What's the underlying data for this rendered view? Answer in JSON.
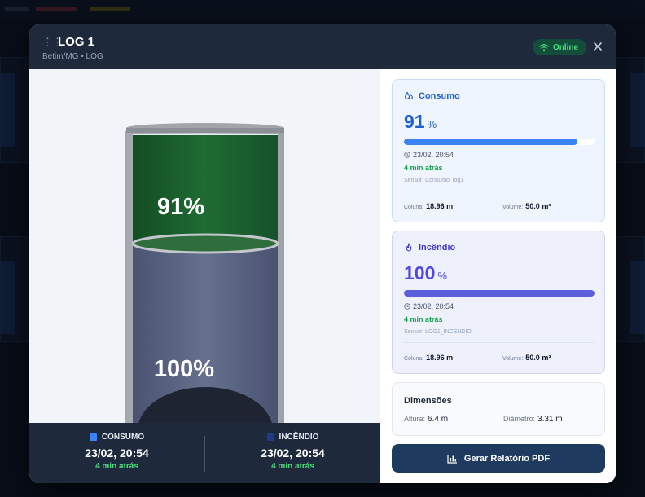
{
  "modal": {
    "title": "LOG 1",
    "subtitle": "Betim/MG • LOG",
    "status": "Online"
  },
  "tank": {
    "consumo_label": "91%",
    "incendio_label": "100%",
    "consumo_level": 0.91,
    "incendio_level": 1.0
  },
  "footer": {
    "items": [
      {
        "label": "CONSUMO",
        "date": "23/02, 20:54",
        "ago": "4 min atrás",
        "color": "#3b82f6"
      },
      {
        "label": "INCÊNDIO",
        "date": "23/02, 20:54",
        "ago": "4 min atrás",
        "color": "#1e3a8a"
      }
    ]
  },
  "consumo": {
    "title": "Consumo",
    "value": "91",
    "unit": "%",
    "level": 0.91,
    "timestamp": "23/02, 20:54",
    "ago": "4 min atrás",
    "sensor": "Sensor: Consumo_log1",
    "coluna_label": "Coluna:",
    "coluna_value": "18.96 m",
    "volume_label": "Volume:",
    "volume_value": "50.0 m³",
    "color": "#1d5fd0"
  },
  "incendio": {
    "title": "Incêndio",
    "value": "100",
    "unit": "%",
    "level": 1.0,
    "timestamp": "23/02, 20:54",
    "ago": "4 min atrás",
    "sensor": "Sensor: LOG1_INCENDIO",
    "coluna_label": "Coluna:",
    "coluna_value": "18.96 m",
    "volume_label": "Volume:",
    "volume_value": "50.0 m³",
    "color": "#4f46e5"
  },
  "dimensions": {
    "title": "Dimensões",
    "altura_label": "Altura:",
    "altura_value": "6.4 m",
    "diametro_label": "Diâmetro:",
    "diametro_value": "3.31 m"
  },
  "actions": {
    "pdf_label": "Gerar Relatório PDF"
  }
}
